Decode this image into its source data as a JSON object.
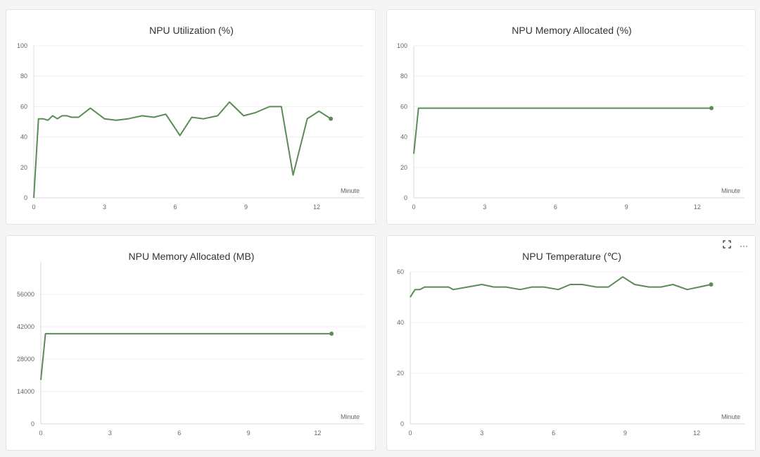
{
  "style": {
    "line_color": "#5b8c55",
    "grid_color": "#efefef",
    "axis_color": "#d9d9d9"
  },
  "toolbar": {
    "fullscreen_icon": "fullscreen-icon",
    "more_icon": "more-horizontal-icon",
    "more_label": "···"
  },
  "chart_data": [
    {
      "type": "line",
      "title": "NPU Utilization (%)",
      "xlabel": "Minute",
      "ylabel": "",
      "xlim": [
        0,
        14
      ],
      "ylim": [
        0,
        100
      ],
      "xticks": [
        0,
        3,
        6,
        9,
        12
      ],
      "yticks": [
        0,
        20,
        40,
        60,
        80,
        100
      ],
      "grid": true,
      "series": [
        {
          "x": [
            0,
            0.2,
            0.4,
            0.6,
            0.8,
            1.0,
            1.2,
            1.4,
            1.6,
            1.9,
            2.4,
            3.0,
            3.5,
            4.0,
            4.6,
            5.1,
            5.6,
            6.2,
            6.7,
            7.2,
            7.8,
            8.3,
            8.9,
            9.4,
            10.0,
            10.5,
            11.0,
            11.6,
            12.1,
            12.6
          ],
          "y": [
            0,
            52,
            52,
            51,
            54,
            52,
            54,
            54,
            53,
            53,
            59,
            52,
            51,
            52,
            54,
            53,
            55,
            41,
            53,
            52,
            54,
            63,
            54,
            56,
            60,
            60,
            15,
            52,
            57,
            52
          ]
        }
      ]
    },
    {
      "type": "line",
      "title": "NPU Memory Allocated (%)",
      "xlabel": "Minute",
      "ylabel": "",
      "xlim": [
        0,
        14
      ],
      "ylim": [
        0,
        100
      ],
      "xticks": [
        0,
        3,
        6,
        9,
        12
      ],
      "yticks": [
        0,
        20,
        40,
        60,
        80,
        100
      ],
      "grid": true,
      "series": [
        {
          "x": [
            0,
            0.2,
            12.6
          ],
          "y": [
            29,
            59,
            59
          ]
        }
      ]
    },
    {
      "type": "line",
      "title": "NPU Memory Allocated (MB)",
      "xlabel": "Minute",
      "ylabel": "",
      "xlim": [
        0,
        14
      ],
      "ylim": [
        0,
        70000
      ],
      "xticks": [
        0,
        3,
        6,
        9,
        12
      ],
      "yticks": [
        0,
        14000,
        28000,
        42000,
        56000
      ],
      "grid": true,
      "series": [
        {
          "x": [
            0,
            0.2,
            12.6
          ],
          "y": [
            19000,
            39000,
            39000
          ]
        }
      ]
    },
    {
      "type": "line",
      "title": "NPU Temperature (℃)",
      "xlabel": "Minute",
      "ylabel": "",
      "xlim": [
        0,
        14
      ],
      "ylim": [
        0,
        60
      ],
      "xticks": [
        0,
        3,
        6,
        9,
        12
      ],
      "yticks": [
        0,
        20,
        40,
        60
      ],
      "grid": true,
      "series": [
        {
          "x": [
            0,
            0.2,
            0.4,
            0.6,
            1.1,
            1.6,
            1.8,
            2.4,
            3.0,
            3.5,
            4.0,
            4.6,
            5.1,
            5.6,
            6.2,
            6.7,
            7.2,
            7.8,
            8.3,
            8.9,
            9.4,
            10.0,
            10.5,
            11.0,
            11.6,
            12.1,
            12.6
          ],
          "y": [
            50,
            53,
            53,
            54,
            54,
            54,
            53,
            54,
            55,
            54,
            54,
            53,
            54,
            54,
            53,
            55,
            55,
            54,
            54,
            58,
            55,
            54,
            54,
            55,
            53,
            54,
            55
          ]
        }
      ]
    }
  ]
}
